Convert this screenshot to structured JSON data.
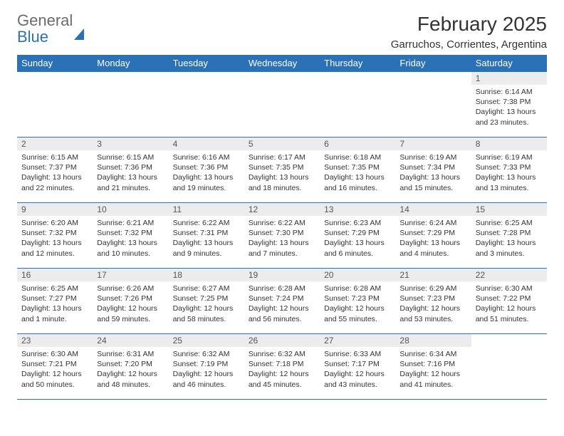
{
  "header": {
    "logo_text_1": "General",
    "logo_text_2": "Blue",
    "month_title": "February 2025",
    "location": "Garruchos, Corrientes, Argentina"
  },
  "calendar": {
    "header_bg": "#2b71b8",
    "header_text_color": "#ffffff",
    "daynum_bg": "#ececec",
    "border_color": "#2b71b8",
    "days_of_week": [
      "Sunday",
      "Monday",
      "Tuesday",
      "Wednesday",
      "Thursday",
      "Friday",
      "Saturday"
    ],
    "weeks": [
      [
        {
          "num": "",
          "lines": [
            "",
            "",
            "",
            ""
          ]
        },
        {
          "num": "",
          "lines": [
            "",
            "",
            "",
            ""
          ]
        },
        {
          "num": "",
          "lines": [
            "",
            "",
            "",
            ""
          ]
        },
        {
          "num": "",
          "lines": [
            "",
            "",
            "",
            ""
          ]
        },
        {
          "num": "",
          "lines": [
            "",
            "",
            "",
            ""
          ]
        },
        {
          "num": "",
          "lines": [
            "",
            "",
            "",
            ""
          ]
        },
        {
          "num": "1",
          "lines": [
            "Sunrise: 6:14 AM",
            "Sunset: 7:38 PM",
            "Daylight: 13 hours",
            "and 23 minutes."
          ]
        }
      ],
      [
        {
          "num": "2",
          "lines": [
            "Sunrise: 6:15 AM",
            "Sunset: 7:37 PM",
            "Daylight: 13 hours",
            "and 22 minutes."
          ]
        },
        {
          "num": "3",
          "lines": [
            "Sunrise: 6:15 AM",
            "Sunset: 7:36 PM",
            "Daylight: 13 hours",
            "and 21 minutes."
          ]
        },
        {
          "num": "4",
          "lines": [
            "Sunrise: 6:16 AM",
            "Sunset: 7:36 PM",
            "Daylight: 13 hours",
            "and 19 minutes."
          ]
        },
        {
          "num": "5",
          "lines": [
            "Sunrise: 6:17 AM",
            "Sunset: 7:35 PM",
            "Daylight: 13 hours",
            "and 18 minutes."
          ]
        },
        {
          "num": "6",
          "lines": [
            "Sunrise: 6:18 AM",
            "Sunset: 7:35 PM",
            "Daylight: 13 hours",
            "and 16 minutes."
          ]
        },
        {
          "num": "7",
          "lines": [
            "Sunrise: 6:19 AM",
            "Sunset: 7:34 PM",
            "Daylight: 13 hours",
            "and 15 minutes."
          ]
        },
        {
          "num": "8",
          "lines": [
            "Sunrise: 6:19 AM",
            "Sunset: 7:33 PM",
            "Daylight: 13 hours",
            "and 13 minutes."
          ]
        }
      ],
      [
        {
          "num": "9",
          "lines": [
            "Sunrise: 6:20 AM",
            "Sunset: 7:32 PM",
            "Daylight: 13 hours",
            "and 12 minutes."
          ]
        },
        {
          "num": "10",
          "lines": [
            "Sunrise: 6:21 AM",
            "Sunset: 7:32 PM",
            "Daylight: 13 hours",
            "and 10 minutes."
          ]
        },
        {
          "num": "11",
          "lines": [
            "Sunrise: 6:22 AM",
            "Sunset: 7:31 PM",
            "Daylight: 13 hours",
            "and 9 minutes."
          ]
        },
        {
          "num": "12",
          "lines": [
            "Sunrise: 6:22 AM",
            "Sunset: 7:30 PM",
            "Daylight: 13 hours",
            "and 7 minutes."
          ]
        },
        {
          "num": "13",
          "lines": [
            "Sunrise: 6:23 AM",
            "Sunset: 7:29 PM",
            "Daylight: 13 hours",
            "and 6 minutes."
          ]
        },
        {
          "num": "14",
          "lines": [
            "Sunrise: 6:24 AM",
            "Sunset: 7:29 PM",
            "Daylight: 13 hours",
            "and 4 minutes."
          ]
        },
        {
          "num": "15",
          "lines": [
            "Sunrise: 6:25 AM",
            "Sunset: 7:28 PM",
            "Daylight: 13 hours",
            "and 3 minutes."
          ]
        }
      ],
      [
        {
          "num": "16",
          "lines": [
            "Sunrise: 6:25 AM",
            "Sunset: 7:27 PM",
            "Daylight: 13 hours",
            "and 1 minute."
          ]
        },
        {
          "num": "17",
          "lines": [
            "Sunrise: 6:26 AM",
            "Sunset: 7:26 PM",
            "Daylight: 12 hours",
            "and 59 minutes."
          ]
        },
        {
          "num": "18",
          "lines": [
            "Sunrise: 6:27 AM",
            "Sunset: 7:25 PM",
            "Daylight: 12 hours",
            "and 58 minutes."
          ]
        },
        {
          "num": "19",
          "lines": [
            "Sunrise: 6:28 AM",
            "Sunset: 7:24 PM",
            "Daylight: 12 hours",
            "and 56 minutes."
          ]
        },
        {
          "num": "20",
          "lines": [
            "Sunrise: 6:28 AM",
            "Sunset: 7:23 PM",
            "Daylight: 12 hours",
            "and 55 minutes."
          ]
        },
        {
          "num": "21",
          "lines": [
            "Sunrise: 6:29 AM",
            "Sunset: 7:23 PM",
            "Daylight: 12 hours",
            "and 53 minutes."
          ]
        },
        {
          "num": "22",
          "lines": [
            "Sunrise: 6:30 AM",
            "Sunset: 7:22 PM",
            "Daylight: 12 hours",
            "and 51 minutes."
          ]
        }
      ],
      [
        {
          "num": "23",
          "lines": [
            "Sunrise: 6:30 AM",
            "Sunset: 7:21 PM",
            "Daylight: 12 hours",
            "and 50 minutes."
          ]
        },
        {
          "num": "24",
          "lines": [
            "Sunrise: 6:31 AM",
            "Sunset: 7:20 PM",
            "Daylight: 12 hours",
            "and 48 minutes."
          ]
        },
        {
          "num": "25",
          "lines": [
            "Sunrise: 6:32 AM",
            "Sunset: 7:19 PM",
            "Daylight: 12 hours",
            "and 46 minutes."
          ]
        },
        {
          "num": "26",
          "lines": [
            "Sunrise: 6:32 AM",
            "Sunset: 7:18 PM",
            "Daylight: 12 hours",
            "and 45 minutes."
          ]
        },
        {
          "num": "27",
          "lines": [
            "Sunrise: 6:33 AM",
            "Sunset: 7:17 PM",
            "Daylight: 12 hours",
            "and 43 minutes."
          ]
        },
        {
          "num": "28",
          "lines": [
            "Sunrise: 6:34 AM",
            "Sunset: 7:16 PM",
            "Daylight: 12 hours",
            "and 41 minutes."
          ]
        },
        {
          "num": "",
          "lines": [
            "",
            "",
            "",
            ""
          ]
        }
      ]
    ]
  }
}
